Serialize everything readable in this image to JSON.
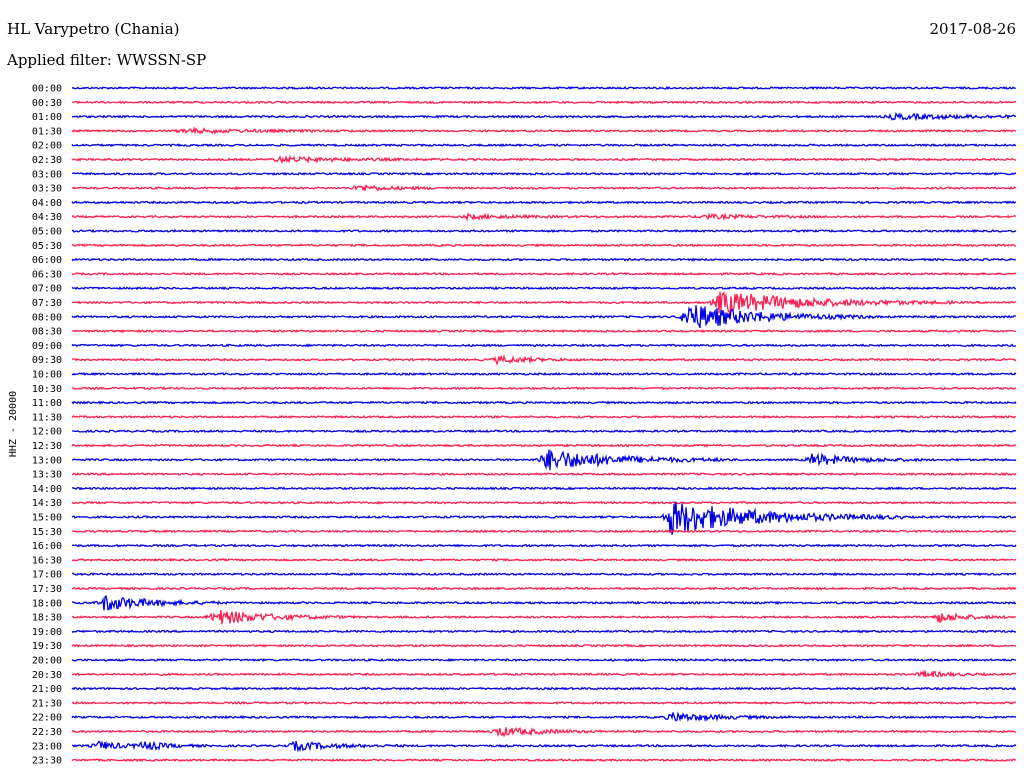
{
  "header": {
    "station": "HL Varypetro (Chania)",
    "date": "2017-08-26",
    "filter": "Applied filter: WWSSN-SP"
  },
  "chart_data": {
    "type": "helicorder",
    "ylabel": "HHZ - 20000",
    "colors": [
      "#0000e6",
      "#ff1e50"
    ],
    "rows": [
      "00:00",
      "00:30",
      "01:00",
      "01:30",
      "02:00",
      "02:30",
      "03:00",
      "03:30",
      "04:00",
      "04:30",
      "05:00",
      "05:30",
      "06:00",
      "06:30",
      "07:00",
      "07:30",
      "08:00",
      "08:30",
      "09:00",
      "09:30",
      "10:00",
      "10:30",
      "11:00",
      "11:30",
      "12:00",
      "12:30",
      "13:00",
      "13:30",
      "14:00",
      "14:30",
      "15:00",
      "15:30",
      "16:00",
      "16:30",
      "17:00",
      "17:30",
      "18:00",
      "18:30",
      "19:00",
      "19:30",
      "20:00",
      "20:30",
      "21:00",
      "21:30",
      "22:00",
      "22:30",
      "23:00",
      "23:30"
    ],
    "events": [
      {
        "row": "01:00",
        "minute": 26,
        "amplitude": 2.5,
        "duration": 2.5
      },
      {
        "row": "01:30",
        "minute": 3.5,
        "amplitude": 2.0,
        "duration": 2.0
      },
      {
        "row": "02:30",
        "minute": 6.5,
        "amplitude": 2.5,
        "duration": 2.0
      },
      {
        "row": "03:30",
        "minute": 9.0,
        "amplitude": 3.0,
        "duration": 1.0
      },
      {
        "row": "04:30",
        "minute": 12.5,
        "amplitude": 2.0,
        "duration": 1.5
      },
      {
        "row": "04:30",
        "minute": 20.0,
        "amplitude": 2.0,
        "duration": 1.5
      },
      {
        "row": "07:30",
        "minute": 20.5,
        "amplitude": 12,
        "duration": 2.5
      },
      {
        "row": "08:00",
        "minute": 19.5,
        "amplitude": 14,
        "duration": 2.0
      },
      {
        "row": "09:30",
        "minute": 13.5,
        "amplitude": 3.5,
        "duration": 1.0
      },
      {
        "row": "13:00",
        "minute": 15.0,
        "amplitude": 11,
        "duration": 2.0
      },
      {
        "row": "13:00",
        "minute": 23.5,
        "amplitude": 6,
        "duration": 1.2
      },
      {
        "row": "15:00",
        "minute": 19.0,
        "amplitude": 18,
        "duration": 2.5
      },
      {
        "row": "18:00",
        "minute": 1.0,
        "amplitude": 8,
        "duration": 1.3
      },
      {
        "row": "18:30",
        "minute": 4.5,
        "amplitude": 8,
        "duration": 1.5
      },
      {
        "row": "18:30",
        "minute": 27.5,
        "amplitude": 5,
        "duration": 0.8
      },
      {
        "row": "20:30",
        "minute": 27.0,
        "amplitude": 3.5,
        "duration": 0.7
      },
      {
        "row": "22:00",
        "minute": 19.0,
        "amplitude": 4.5,
        "duration": 1.3
      },
      {
        "row": "22:30",
        "minute": 13.5,
        "amplitude": 4.5,
        "duration": 1.3
      },
      {
        "row": "23:00",
        "minute": 0.8,
        "amplitude": 4.5,
        "duration": 0.7
      },
      {
        "row": "23:00",
        "minute": 2.2,
        "amplitude": 4.5,
        "duration": 0.7
      },
      {
        "row": "23:00",
        "minute": 7.0,
        "amplitude": 4.5,
        "duration": 1.2
      }
    ]
  }
}
